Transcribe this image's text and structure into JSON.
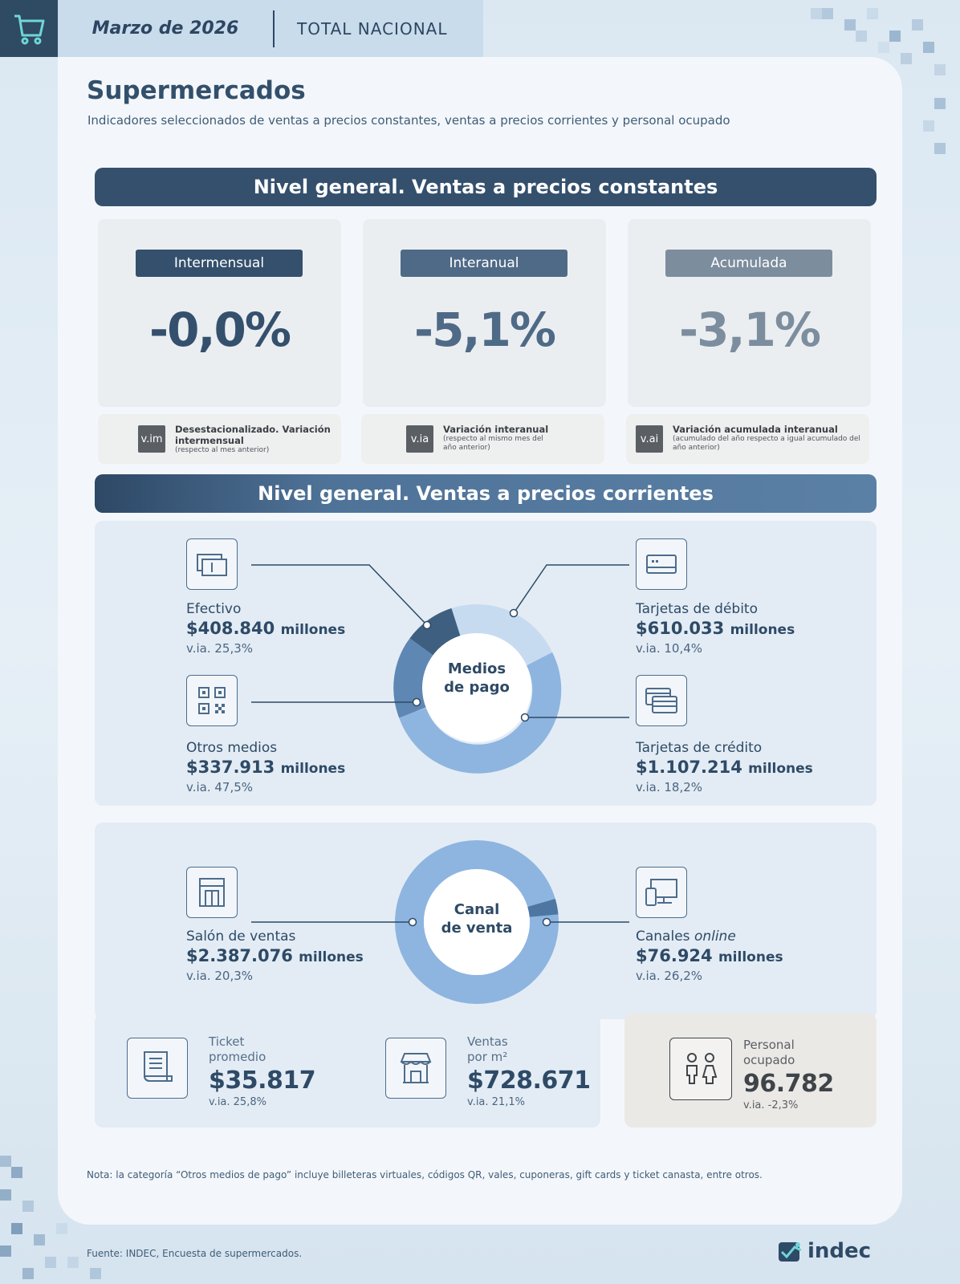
{
  "header": {
    "month": "Marzo de 2026",
    "scope": "TOTAL NACIONAL"
  },
  "title": "Supermercados",
  "subtitle": "Indicadores seleccionados de ventas a precios constantes, ventas a precios corrientes y personal ocupado",
  "section_constant": {
    "heading": "Nivel general. Ventas a precios constantes",
    "kpis": [
      {
        "tag": "Intermensual",
        "value": "-0,0%",
        "color": "#34506d"
      },
      {
        "tag": "Interanual",
        "value": "-5,1%",
        "color": "#4f6a86"
      },
      {
        "tag": "Acumulada",
        "value": "-3,1%",
        "color": "#7c8d9e"
      }
    ],
    "legends": [
      {
        "badge": "v.im",
        "main": "Desestacionalizado. Variación intermensual",
        "small": "(respecto al mes anterior)"
      },
      {
        "badge": "v.ia",
        "main": "Variación interanual",
        "small": "(respecto al mismo mes del año anterior)"
      },
      {
        "badge": "v.ai",
        "main": "Variación acumulada interanual",
        "small": "(acumulado del año respecto a igual acumulado del año anterior)"
      }
    ]
  },
  "section_current": {
    "heading": "Nivel general. Ventas a precios corrientes",
    "payment": {
      "center_line1": "Medios",
      "center_line2": "de pago",
      "items": [
        {
          "label": "Efectivo",
          "value": "$408.840",
          "unit": "millones",
          "via": "v.ia. 25,3%",
          "icon": "cash-icon",
          "color": "#3f5f80"
        },
        {
          "label": "Tarjetas de débito",
          "value": "$610.033",
          "unit": "millones",
          "via": "v.ia. 10,4%",
          "icon": "debit-card-icon",
          "color": "#c7dbf0"
        },
        {
          "label": "Otros medios",
          "value": "$337.913",
          "unit": "millones",
          "via": "v.ia. 47,5%",
          "icon": "qr-code-icon",
          "color": "#5e87b3"
        },
        {
          "label": "Tarjetas de crédito",
          "value": "$1.107.214",
          "unit": "millones",
          "via": "v.ia. 18,2%",
          "icon": "credit-cards-icon",
          "color": "#8db5e0"
        }
      ]
    },
    "channel": {
      "center_line1": "Canal",
      "center_line2": "de venta",
      "items": [
        {
          "label": "Salón de ventas",
          "value": "$2.387.076",
          "unit": "millones",
          "via": "v.ia. 20,3%",
          "icon": "store-building-icon",
          "color": "#8db5e0"
        },
        {
          "label_prefix": "Canales",
          "label_em": "online",
          "value": "$76.924",
          "unit": "millones",
          "via": "v.ia. 26,2%",
          "icon": "devices-icon",
          "color": "#4d76a3"
        }
      ]
    }
  },
  "stats": [
    {
      "label_line1": "Ticket",
      "label_line2": "promedio",
      "value": "$35.817",
      "via": "v.ia. 25,8%",
      "icon": "receipt-icon"
    },
    {
      "label_line1": "Ventas",
      "label_line2": "por m²",
      "value": "$728.671",
      "via": "v.ia. 21,1%",
      "icon": "shop-front-icon"
    },
    {
      "label_line1": "Personal",
      "label_line2": "ocupado",
      "value": "96.782",
      "via": "v.ia. -2,3%",
      "icon": "people-icon"
    }
  ],
  "note": "Nota: la categoría “Otros medios de pago” incluye billeteras virtuales, códigos QR, vales, cuponeras, gift cards y ticket canasta, entre otros.",
  "source": "Fuente: INDEC, Encuesta de supermercados.",
  "logo_text": "indec"
}
